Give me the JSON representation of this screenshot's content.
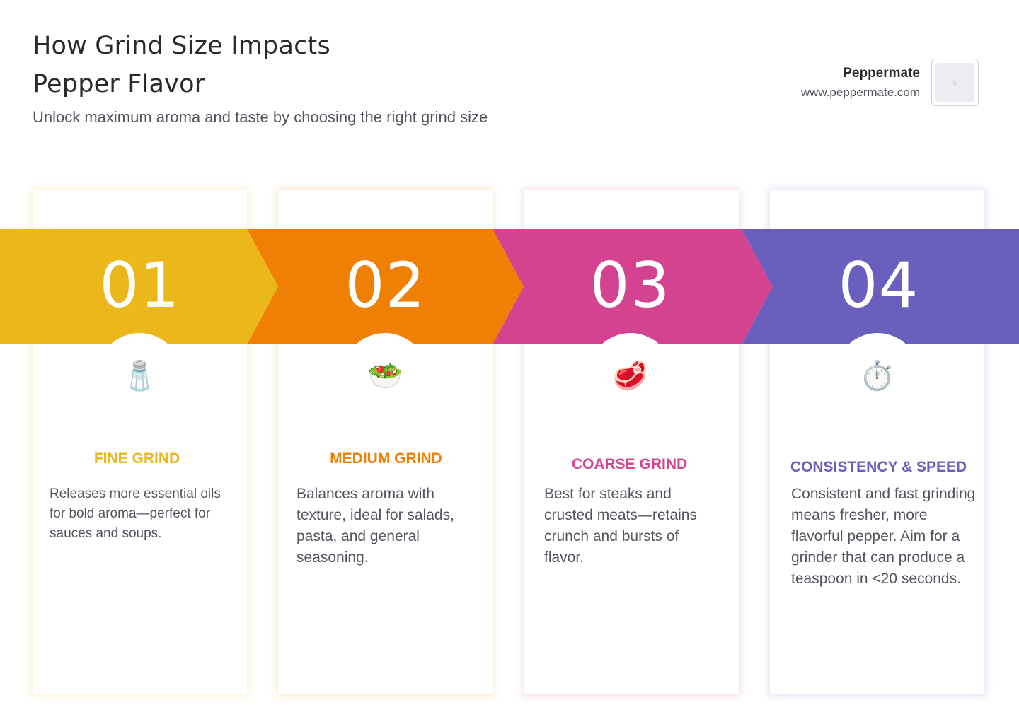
{
  "header": {
    "title_line1": "How Grind Size Impacts",
    "title_line2": "Pepper Flavor",
    "subtitle": "Unlock maximum aroma and taste by choosing the right grind size"
  },
  "brand": {
    "name": "Peppermate",
    "url": "www.peppermate.com",
    "logo_icon": "logo-placeholder-icon"
  },
  "steps": [
    {
      "number": "01",
      "icon": "salt-shaker-icon",
      "glyph": "🧂",
      "title": "FINE GRIND",
      "color": "#ecb71a",
      "description": "Releases more essential oils for bold aroma—perfect for sauces and soups."
    },
    {
      "number": "02",
      "icon": "salad-icon",
      "glyph": "🥗",
      "title": "MEDIUM GRIND",
      "color": "#f08004",
      "description": "Balances aroma with texture, ideal for salads, pasta, and general seasoning."
    },
    {
      "number": "03",
      "icon": "steak-icon",
      "glyph": "🥩",
      "title": "COARSE GRIND",
      "color": "#d44390",
      "description": "Best for steaks and crusted meats—retains crunch and bursts of flavor."
    },
    {
      "number": "04",
      "icon": "stopwatch-icon",
      "glyph": "⏱️",
      "title": "CONSISTENCY & SPEED",
      "color": "#6b5fbd",
      "description": "Consistent and fast grinding means fresher, more flavorful pepper. Aim for a grinder that can produce a teaspoon in <20 seconds."
    }
  ]
}
